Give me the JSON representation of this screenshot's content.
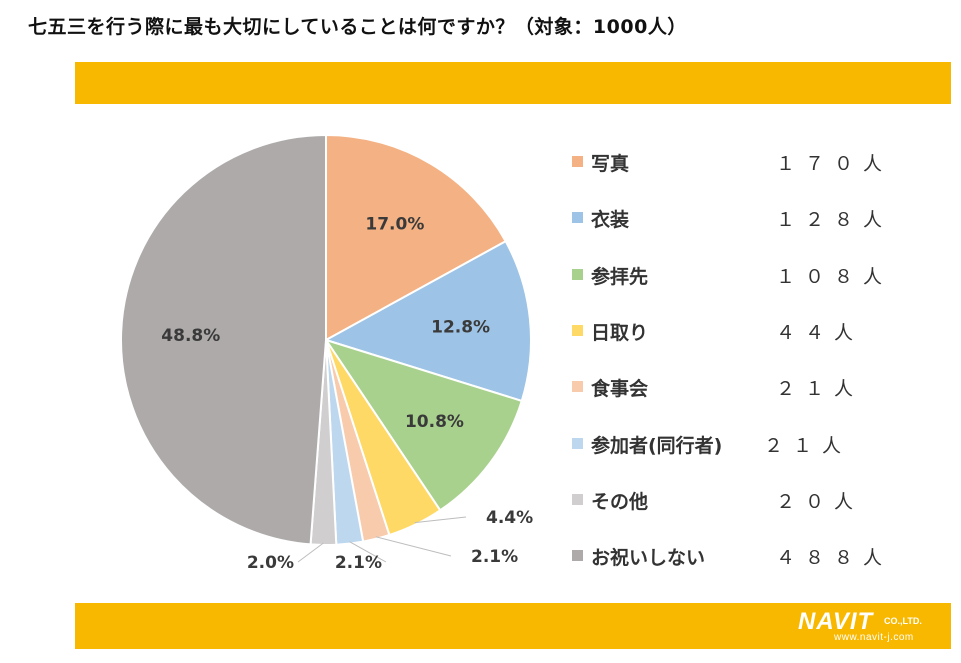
{
  "title": "七五三を行う際に最も大切にしていることは何ですか？（対象：1000人）",
  "brand": {
    "name": "NAVIT",
    "suffix": "CO.,LTD.",
    "url": "www.navit-j.com"
  },
  "colors": {
    "band": "#F9B800"
  },
  "chart_data": {
    "type": "pie",
    "start_angle_deg": 0,
    "direction": "clockwise",
    "legend_position": "right",
    "slices": [
      {
        "label": "写真",
        "count": "１７０人",
        "value": 17.0,
        "percent_label": "17.0%",
        "color": "#F4B183"
      },
      {
        "label": "衣装",
        "count": "１２８人",
        "value": 12.8,
        "percent_label": "12.8%",
        "color": "#9DC3E6"
      },
      {
        "label": "参拝先",
        "count": "１０８人",
        "value": 10.8,
        "percent_label": "10.8%",
        "color": "#A9D18E"
      },
      {
        "label": "日取り",
        "count": "４４人",
        "value": 4.4,
        "percent_label": "4.4%",
        "color": "#FFD966"
      },
      {
        "label": "食事会",
        "count": "２１人",
        "value": 2.1,
        "percent_label": "2.1%",
        "color": "#F8CBAD"
      },
      {
        "label": "参加者(同行者)",
        "count": "２１人",
        "value": 2.1,
        "percent_label": "2.1%",
        "color": "#BDD7EE"
      },
      {
        "label": "その他",
        "count": "２０人",
        "value": 2.0,
        "percent_label": "2.0%",
        "color": "#D0CECE"
      },
      {
        "label": "お祝いしない",
        "count": "４８８人",
        "value": 48.8,
        "percent_label": "48.8%",
        "color": "#AEAAAA"
      }
    ]
  }
}
